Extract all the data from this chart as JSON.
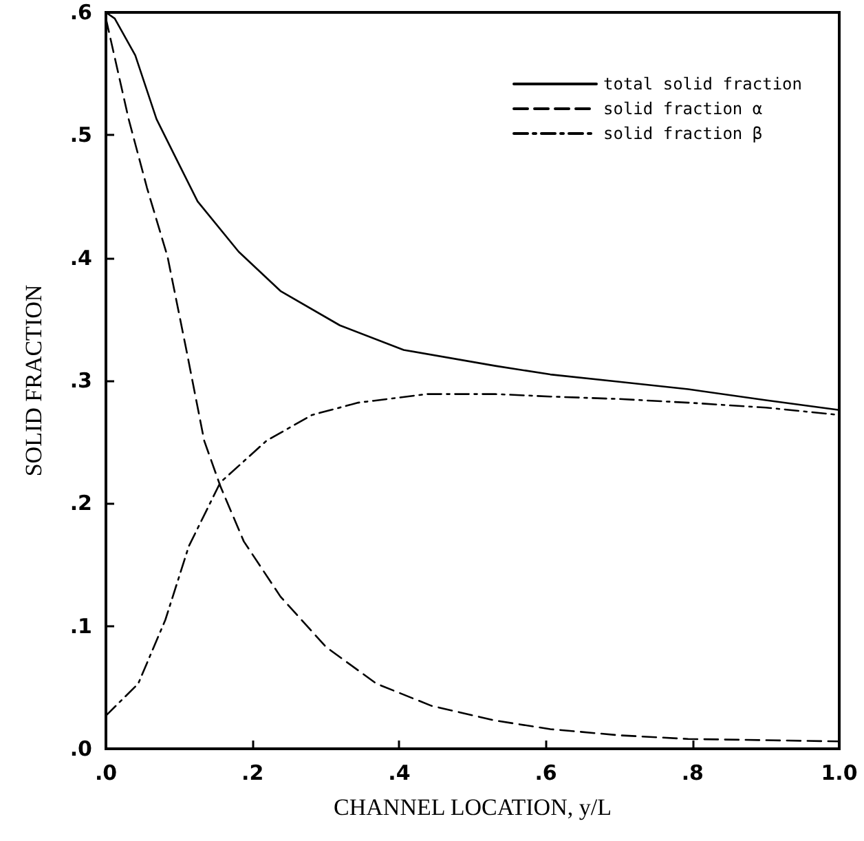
{
  "chart_data": {
    "type": "line",
    "xlabel": "CHANNEL LOCATION, y/L",
    "ylabel": "SOLID FRACTION",
    "xlim": [
      0,
      1
    ],
    "ylim": [
      0,
      0.6
    ],
    "xticks": [
      {
        "value": 0,
        "label": ".0"
      },
      {
        "value": 0.2,
        "label": ".2"
      },
      {
        "value": 0.4,
        "label": ".4"
      },
      {
        "value": 0.6,
        "label": ".6"
      },
      {
        "value": 0.8,
        "label": ".8"
      },
      {
        "value": 1,
        "label": "1.0"
      }
    ],
    "yticks": [
      {
        "value": 0,
        "label": ".0"
      },
      {
        "value": 0.1,
        "label": ".1"
      },
      {
        "value": 0.2,
        "label": ".2"
      },
      {
        "value": 0.3,
        "label": ".3"
      },
      {
        "value": 0.4,
        "label": ".4"
      },
      {
        "value": 0.5,
        "label": ".5"
      },
      {
        "value": 0.6,
        "label": ".6"
      }
    ],
    "grid": false,
    "legend": "top right",
    "marker": "none",
    "series": [
      {
        "name": "total solid fraction",
        "color": "#000000",
        "line_style": "solid",
        "x": [
          0,
          0.012,
          0.04,
          0.069,
          0.094,
          0.125,
          0.181,
          0.238,
          0.319,
          0.406,
          0.531,
          0.606,
          0.7,
          0.794,
          0.9,
          1
        ],
        "values": [
          0.6,
          0.595,
          0.565,
          0.513,
          0.483,
          0.446,
          0.405,
          0.373,
          0.345,
          0.325,
          0.312,
          0.305,
          0.299,
          0.293,
          0.284,
          0.276
        ]
      },
      {
        "name": "solid fraction α",
        "color": "#000000",
        "line_style": "dashed",
        "x": [
          0,
          0.031,
          0.056,
          0.084,
          0.109,
          0.134,
          0.156,
          0.188,
          0.238,
          0.3,
          0.369,
          0.444,
          0.531,
          0.606,
          0.7,
          0.794,
          0.9,
          1
        ],
        "values": [
          0.595,
          0.513,
          0.457,
          0.401,
          0.327,
          0.251,
          0.214,
          0.169,
          0.124,
          0.083,
          0.053,
          0.035,
          0.023,
          0.016,
          0.011,
          0.008,
          0.007,
          0.006
        ]
      },
      {
        "name": "solid fraction β",
        "color": "#000000",
        "line_style": "dashdot",
        "x": [
          0,
          0.044,
          0.081,
          0.113,
          0.156,
          0.219,
          0.281,
          0.344,
          0.438,
          0.531,
          0.606,
          0.7,
          0.794,
          0.9,
          1
        ],
        "values": [
          0.027,
          0.053,
          0.105,
          0.165,
          0.217,
          0.251,
          0.272,
          0.282,
          0.289,
          0.289,
          0.287,
          0.285,
          0.282,
          0.278,
          0.272
        ]
      }
    ]
  }
}
